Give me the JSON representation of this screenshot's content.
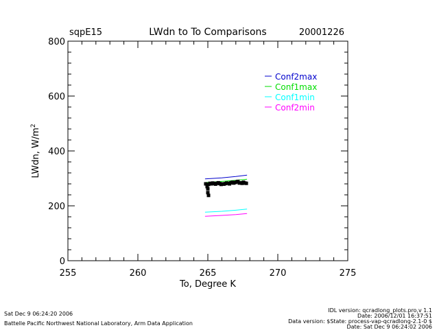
{
  "header": {
    "site": "sqpE15",
    "title": "LWdn  to To Comparisons",
    "date": "20001226"
  },
  "footer": {
    "left_date": "Sat Dec  9 06:24:20 2006",
    "left_org": "Battelle Pacific Northwest National Laboratory, Arm Data Application",
    "right_lines": [
      "IDL version: qcradlong_plots.pro,v 1.1",
      "Date: 2006/12/01 16:37:51",
      "Data version: $State: process-vap-qcradlong-2.1-0 $",
      "Date: Sat Dec  9 06:24:02 2006"
    ]
  },
  "colors": {
    "Conf2max": "#0000cc",
    "Conf1max": "#00dd00",
    "Conf1min": "#00ffff",
    "Conf2min": "#ff00ff",
    "observed": "#000000"
  },
  "chart_data": {
    "type": "scatter",
    "title": "LWdn  to To Comparisons",
    "xlabel": "To, Degree K",
    "ylabel": "LWdn, W/m^2",
    "xlim": [
      255,
      275
    ],
    "ylim": [
      0,
      800
    ],
    "xticks": [
      255,
      260,
      265,
      270,
      275
    ],
    "yticks": [
      0,
      200,
      400,
      600,
      800
    ],
    "grid": false,
    "legend_position": "top-right",
    "series": [
      {
        "name": "Conf2max",
        "style": "line",
        "x": [
          264.8,
          266.0,
          267.0,
          267.8
        ],
        "y": [
          298,
          302,
          307,
          312
        ]
      },
      {
        "name": "Conf1max",
        "style": "line",
        "x": [
          264.8,
          266.0,
          267.0,
          267.8
        ],
        "y": [
          285,
          289,
          293,
          297
        ]
      },
      {
        "name": "Conf1min",
        "style": "line",
        "x": [
          264.8,
          266.0,
          267.0,
          267.8
        ],
        "y": [
          177,
          180,
          184,
          188
        ]
      },
      {
        "name": "Conf2min",
        "style": "line",
        "x": [
          264.8,
          266.0,
          267.0,
          267.8
        ],
        "y": [
          162,
          165,
          168,
          172
        ]
      },
      {
        "style": "points",
        "x": [
          264.85,
          264.95,
          265.05,
          265.15,
          265.25,
          265.35,
          265.45,
          265.55,
          265.65,
          265.75,
          265.85,
          265.95,
          266.05,
          266.15,
          266.25,
          266.35,
          266.45,
          266.55,
          266.65,
          266.75,
          266.85,
          266.95,
          267.05,
          267.15,
          267.25,
          267.35,
          267.45,
          267.55,
          267.65,
          267.75,
          265.0,
          265.0,
          265.05,
          264.95
        ],
        "y": [
          280,
          276,
          278,
          282,
          280,
          283,
          281,
          279,
          282,
          284,
          281,
          278,
          280,
          279,
          281,
          283,
          282,
          280,
          284,
          286,
          283,
          285,
          287,
          289,
          283,
          284,
          282,
          286,
          283,
          282,
          262,
          248,
          238,
          270
        ]
      }
    ]
  }
}
